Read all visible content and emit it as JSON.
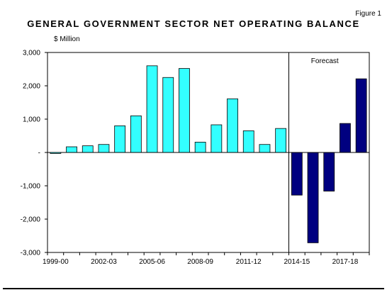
{
  "figure_label": "Figure 1",
  "chart_data": {
    "type": "bar",
    "title": "GENERAL GOVERNMENT SECTOR NET OPERATING BALANCE",
    "ylabel": "$ Million",
    "xlabel": "",
    "ylim": [
      -3000,
      3000
    ],
    "yticks": [
      {
        "value": 3000,
        "label": "3,000"
      },
      {
        "value": 2000,
        "label": "2,000"
      },
      {
        "value": 1000,
        "label": "1,000"
      },
      {
        "value": 0,
        "label": "-"
      },
      {
        "value": -1000,
        "label": "-1,000"
      },
      {
        "value": -2000,
        "label": "-2,000"
      },
      {
        "value": -3000,
        "label": "-3,000"
      }
    ],
    "categories": [
      "1999-00",
      "2000-01",
      "2001-02",
      "2002-03",
      "2003-04",
      "2004-05",
      "2005-06",
      "2006-07",
      "2007-08",
      "2008-09",
      "2009-10",
      "2010-11",
      "2011-12",
      "2012-13",
      "2013-14",
      "2014-15",
      "2015-16",
      "2016-17",
      "2017-18",
      "2018-19"
    ],
    "xtick_labels": [
      "1999-00",
      "2002-03",
      "2005-06",
      "2008-09",
      "2011-12",
      "2014-15",
      "2017-18"
    ],
    "values": [
      -30,
      170,
      200,
      240,
      800,
      1100,
      2600,
      2250,
      2520,
      310,
      830,
      1610,
      650,
      240,
      720,
      -1280,
      -2710,
      -1160,
      870,
      2210
    ],
    "forecast_start": "2014-15",
    "forecast_label": "Forecast",
    "colors": {
      "actual": "#33ffff",
      "forecast": "#000080",
      "outline": "#000000"
    },
    "grid": false,
    "legend": "none"
  }
}
